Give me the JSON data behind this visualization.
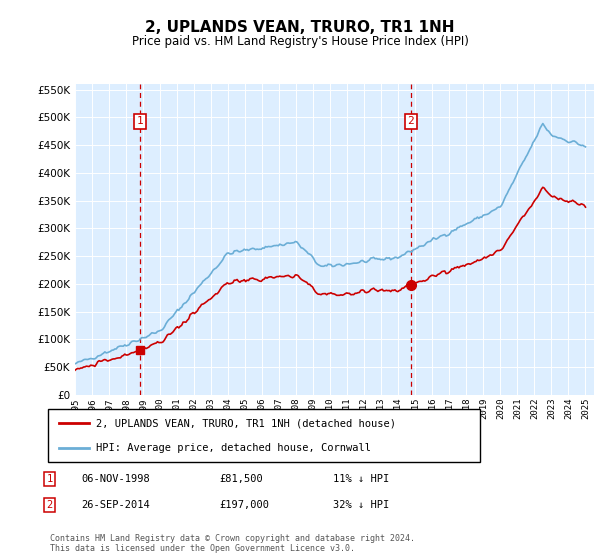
{
  "title": "2, UPLANDS VEAN, TRURO, TR1 1NH",
  "subtitle": "Price paid vs. HM Land Registry's House Price Index (HPI)",
  "hpi_label": "HPI: Average price, detached house, Cornwall",
  "property_label": "2, UPLANDS VEAN, TRURO, TR1 1NH (detached house)",
  "transaction1_date": "06-NOV-1998",
  "transaction1_price": 81500,
  "transaction1_hpi": "11% ↓ HPI",
  "transaction2_date": "26-SEP-2014",
  "transaction2_price": 197000,
  "transaction2_hpi": "32% ↓ HPI",
  "hpi_color": "#6baed6",
  "property_color": "#cc0000",
  "vline_color": "#cc0000",
  "background_color": "#ddeeff",
  "ylim_min": 0,
  "ylim_max": 560000,
  "yticks": [
    0,
    50000,
    100000,
    150000,
    200000,
    250000,
    300000,
    350000,
    400000,
    450000,
    500000,
    550000
  ],
  "footer": "Contains HM Land Registry data © Crown copyright and database right 2024.\nThis data is licensed under the Open Government Licence v3.0.",
  "t1_x": 1998.84,
  "t2_x": 2014.73,
  "t1_y": 81500,
  "t2_y": 197000,
  "xmin": 1995.0,
  "xmax": 2025.5,
  "xtick_years": [
    1995,
    1996,
    1997,
    1998,
    1999,
    2000,
    2001,
    2002,
    2003,
    2004,
    2005,
    2006,
    2007,
    2008,
    2009,
    2010,
    2011,
    2012,
    2013,
    2014,
    2015,
    2016,
    2017,
    2018,
    2019,
    2020,
    2021,
    2022,
    2023,
    2024,
    2025
  ]
}
